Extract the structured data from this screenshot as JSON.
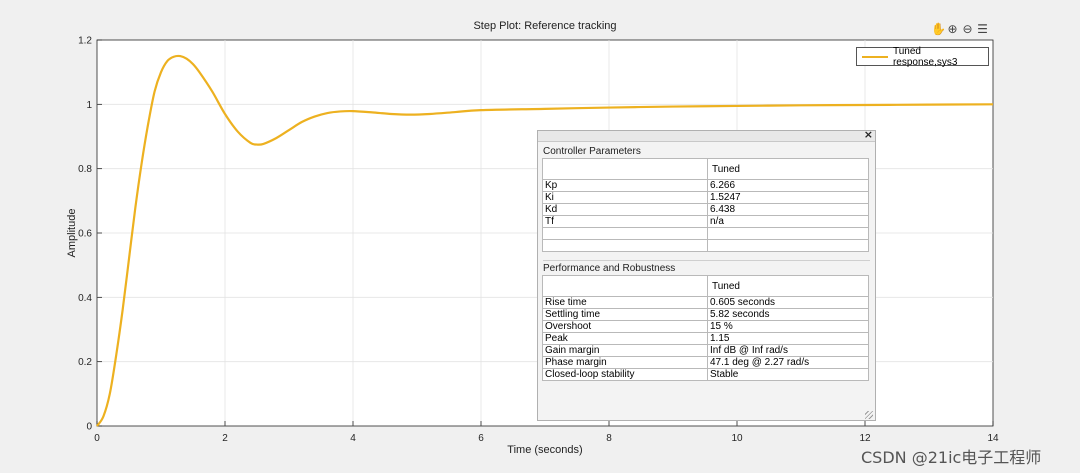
{
  "toolbar": {
    "pan_icon": "pan-hand-icon",
    "zoom_in_icon": "zoom-in-icon",
    "zoom_out_icon": "zoom-out-icon",
    "data_icon": "data-tips-icon"
  },
  "legend": {
    "entry": "Tuned response,sys3"
  },
  "panel": {
    "controller_title": "Controller Parameters",
    "controller_header": "Tuned",
    "controller_rows": [
      {
        "name": "Kp",
        "value": "6.266"
      },
      {
        "name": "Ki",
        "value": "1.5247"
      },
      {
        "name": "Kd",
        "value": "6.438"
      },
      {
        "name": "Tf",
        "value": "n/a"
      },
      {
        "name": "",
        "value": ""
      },
      {
        "name": "",
        "value": ""
      }
    ],
    "performance_title": "Performance and Robustness",
    "performance_header": "Tuned",
    "performance_rows": [
      {
        "name": "Rise time",
        "value": "0.605 seconds"
      },
      {
        "name": "Settling time",
        "value": "5.82 seconds"
      },
      {
        "name": "Overshoot",
        "value": "15 %"
      },
      {
        "name": "Peak",
        "value": "1.15"
      },
      {
        "name": "Gain margin",
        "value": "Inf dB @ Inf rad/s"
      },
      {
        "name": "Phase margin",
        "value": "47.1 deg @ 2.27 rad/s"
      },
      {
        "name": "Closed-loop stability",
        "value": "Stable"
      }
    ],
    "close_label": "×"
  },
  "watermark": "CSDN @21ic电子工程师",
  "chart_data": {
    "type": "line",
    "title": "Step Plot: Reference tracking",
    "xlabel": "Time (seconds)",
    "ylabel": "Amplitude",
    "xlim": [
      0,
      14
    ],
    "ylim": [
      0,
      1.2
    ],
    "xticks": [
      0,
      2,
      4,
      6,
      8,
      10,
      12,
      14
    ],
    "yticks": [
      0,
      0.2,
      0.4,
      0.6,
      0.8,
      1,
      1.2
    ],
    "xtick_labels": [
      "0",
      "2",
      "4",
      "6",
      "8",
      "10",
      "12",
      "14"
    ],
    "ytick_labels": [
      "0",
      "0.2",
      "0.4",
      "0.6",
      "0.8",
      "1",
      "1.2"
    ],
    "grid": true,
    "legend_position": "top-right",
    "series": [
      {
        "name": "Tuned response,sys3",
        "color": "#EDB120",
        "x": [
          0,
          0.1,
          0.2,
          0.3,
          0.4,
          0.5,
          0.6,
          0.7,
          0.8,
          0.9,
          1.0,
          1.1,
          1.2,
          1.3,
          1.4,
          1.5,
          1.6,
          1.8,
          2.0,
          2.2,
          2.4,
          2.5,
          2.6,
          2.8,
          3.0,
          3.2,
          3.4,
          3.6,
          3.8,
          4.0,
          4.3,
          4.6,
          4.9,
          5.2,
          5.6,
          6.0,
          7.0,
          8.0,
          9.0,
          10.0,
          11.0,
          12.0,
          13.0,
          14.0
        ],
        "y": [
          0,
          0.03,
          0.1,
          0.22,
          0.36,
          0.52,
          0.68,
          0.82,
          0.94,
          1.04,
          1.1,
          1.135,
          1.148,
          1.15,
          1.142,
          1.125,
          1.1,
          1.04,
          0.97,
          0.915,
          0.88,
          0.875,
          0.877,
          0.895,
          0.92,
          0.945,
          0.962,
          0.973,
          0.978,
          0.979,
          0.975,
          0.97,
          0.968,
          0.97,
          0.976,
          0.982,
          0.986,
          0.99,
          0.993,
          0.995,
          0.997,
          0.998,
          0.999,
          1.0
        ]
      }
    ]
  }
}
